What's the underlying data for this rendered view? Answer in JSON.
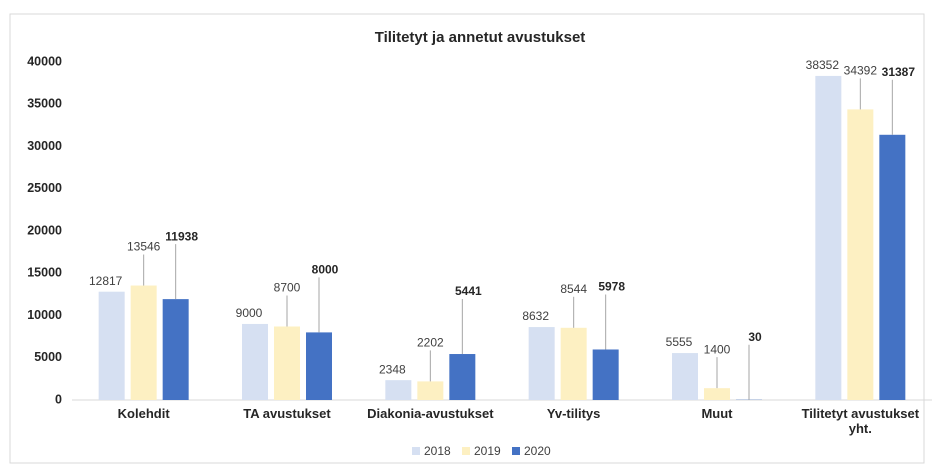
{
  "chart_data": {
    "type": "bar",
    "title": "Tilitetyt ja annetut avustukset",
    "categories": [
      "Kolehdit",
      "TA avustukset",
      "Diakonia-avustukset",
      "Yv-tilitys",
      "Muut",
      "Tilitetyt avustukset yht."
    ],
    "series": [
      {
        "name": "2018",
        "color": "#d6e0f2",
        "values": [
          12817,
          9000,
          2348,
          8632,
          5555,
          38352
        ]
      },
      {
        "name": "2019",
        "color": "#fdf0c2",
        "values": [
          13546,
          8700,
          2202,
          8544,
          1400,
          34392
        ]
      },
      {
        "name": "2020",
        "color": "#4472c4",
        "values": [
          11938,
          8000,
          5441,
          5978,
          30,
          31387
        ]
      }
    ],
    "ylim": [
      0,
      40000
    ],
    "yticks": [
      0,
      5000,
      10000,
      15000,
      20000,
      25000,
      30000,
      35000,
      40000
    ],
    "grid": false,
    "legend": "bottom"
  }
}
